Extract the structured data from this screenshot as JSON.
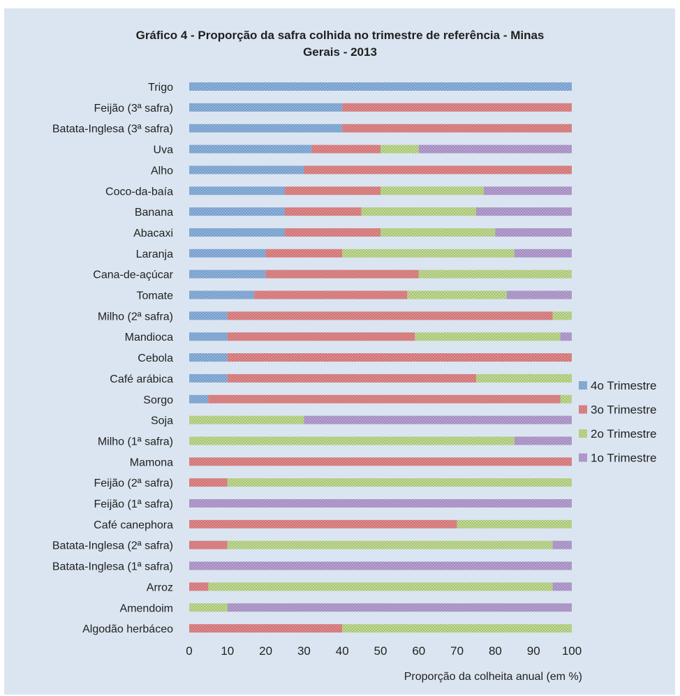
{
  "chart_data": {
    "type": "bar",
    "orientation": "horizontal",
    "stacked": true,
    "title": "Gráfico 4 - Proporção da safra colhida no trimestre de referência - Minas Gerais - 2013",
    "title_lines": [
      "Gráfico 4 - Proporção da safra colhida no trimestre de referência - Minas",
      "Gerais - 2013"
    ],
    "xlabel": "Proporção da colheita anual (em %)",
    "ylabel": "",
    "xlim": [
      0,
      100
    ],
    "xticks": [
      "0",
      "10",
      "20",
      "30",
      "40",
      "50",
      "60",
      "70",
      "80",
      "90",
      "100"
    ],
    "grid": false,
    "legend_position": "right",
    "categories": [
      "Trigo",
      "Feijão (3ª safra)",
      "Batata-Inglesa (3ª safra)",
      "Uva",
      "Alho",
      "Coco-da-baía",
      "Banana",
      "Abacaxi",
      "Laranja",
      "Cana-de-açúcar",
      "Tomate",
      "Milho (2ª safra)",
      "Mandioca",
      "Cebola",
      "Café arábica",
      "Sorgo",
      "Soja",
      "Milho (1ª safra)",
      "Mamona",
      "Feijão (2ª safra)",
      "Feijão (1ª safra)",
      "Café canephora",
      "Batata-Inglesa (2ª safra)",
      "Batata-Inglesa (1ª safra)",
      "Arroz",
      "Amendoim ",
      "Algodão herbáceo"
    ],
    "series": [
      {
        "name": "4o Trimestre",
        "color": "#8db4e2",
        "values": [
          100,
          40,
          40,
          32,
          30,
          25,
          25,
          25,
          20,
          20,
          17,
          10,
          10,
          10,
          10,
          5,
          0,
          0,
          0,
          0,
          0,
          0,
          0,
          0,
          0,
          0,
          0
        ]
      },
      {
        "name": "3o Trimestre",
        "color": "#e6898a",
        "values": [
          0,
          60,
          60,
          18,
          70,
          25,
          20,
          25,
          20,
          40,
          40,
          85,
          49,
          90,
          65,
          92,
          0,
          0,
          100,
          10,
          0,
          70,
          10,
          0,
          5,
          0,
          40
        ]
      },
      {
        "name": "2o Trimestre",
        "color": "#c3de90",
        "values": [
          0,
          0,
          0,
          10,
          0,
          27,
          30,
          30,
          45,
          40,
          26,
          5,
          38,
          0,
          25,
          3,
          30,
          85,
          0,
          90,
          0,
          30,
          85,
          0,
          90,
          10,
          60
        ]
      },
      {
        "name": "1o Trimestre",
        "color": "#b9a2d6",
        "values": [
          0,
          0,
          0,
          40,
          0,
          23,
          25,
          20,
          15,
          0,
          17,
          0,
          3,
          0,
          0,
          0,
          70,
          15,
          0,
          0,
          100,
          0,
          5,
          100,
          5,
          90,
          0
        ]
      }
    ]
  }
}
